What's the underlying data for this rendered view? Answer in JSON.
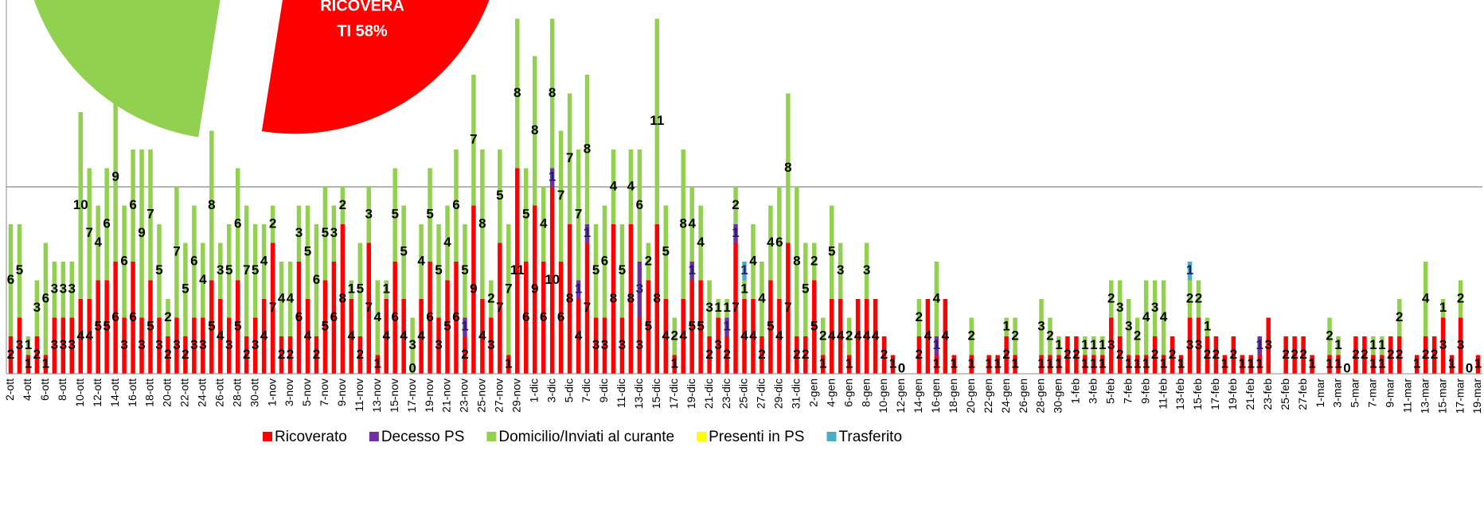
{
  "chart_data": [
    {
      "type": "pie",
      "slices": [
        {
          "label_lines": [
            "RICOVERA",
            "TI 58%"
          ],
          "value": 58,
          "color": "#ff0000"
        },
        {
          "value": 42,
          "color": "#92d050"
        }
      ]
    },
    {
      "type": "stacked_bar",
      "categories": [
        "2-ott",
        null,
        "4-ott",
        null,
        "6-ott",
        null,
        "8-ott",
        null,
        "10-ott",
        null,
        "12-ott",
        null,
        "14-ott",
        null,
        "16-ott",
        null,
        "18-ott",
        null,
        "20-ott",
        null,
        "22-ott",
        null,
        "24-ott",
        null,
        "26-ott",
        null,
        "28-ott",
        null,
        "30-ott",
        null,
        "1-nov",
        null,
        "3-nov",
        null,
        "5-nov",
        null,
        "7-nov",
        null,
        "9-nov",
        null,
        "11-nov",
        null,
        "13-nov",
        null,
        "15-nov",
        null,
        "17-nov",
        null,
        "19-nov",
        null,
        "21-nov",
        null,
        "23-nov",
        null,
        "25-nov",
        null,
        "27-nov",
        null,
        "29-nov",
        null,
        "1-dic",
        null,
        "3-dic",
        null,
        "5-dic",
        null,
        "7-dic",
        null,
        "9-dic",
        null,
        "11-dic",
        null,
        "13-dic",
        null,
        "15-dic",
        null,
        "17-dic",
        null,
        "19-dic",
        null,
        "21-dic",
        null,
        "23-dic",
        null,
        "25-dic",
        null,
        "27-dic",
        null,
        "29-dic",
        null,
        "31-dic",
        null,
        "2-gen",
        null,
        "4-gen",
        null,
        "6-gen",
        null,
        "8-gen",
        null,
        "10-gen",
        null,
        "12-gen",
        null,
        "14-gen",
        null,
        "16-gen",
        null,
        "18-gen",
        null,
        "20-gen",
        null,
        "22-gen",
        null,
        "24-gen",
        null,
        "26-gen",
        null,
        "28-gen",
        null,
        "30-gen",
        null,
        "1-feb",
        null,
        "3-feb",
        null,
        "5-feb",
        null,
        "7-feb",
        null,
        "9-feb",
        null,
        "11-feb",
        null,
        "13-feb",
        null,
        "15-feb",
        null,
        "17-feb",
        null,
        "19-feb",
        null,
        "21-feb",
        null,
        "23-feb",
        null,
        "25-feb",
        null,
        "27-feb",
        null,
        "1-mar",
        null,
        "3-mar",
        null,
        "5-mar",
        null,
        "7-mar",
        null,
        "9-mar",
        null,
        "11-mar",
        null,
        "13-mar",
        null,
        "15-mar",
        null,
        "17-mar",
        null,
        "19-mar"
      ],
      "series": [
        {
          "name": "Ricoverato",
          "color": "#ff0000",
          "values": [
            2,
            3,
            1,
            2,
            1,
            3,
            3,
            3,
            4,
            4,
            5,
            5,
            6,
            3,
            6,
            3,
            5,
            3,
            2,
            3,
            2,
            3,
            3,
            5,
            4,
            3,
            5,
            2,
            3,
            4,
            7,
            2,
            2,
            6,
            4,
            2,
            5,
            6,
            8,
            4,
            2,
            7,
            1,
            4,
            6,
            4,
            0,
            4,
            6,
            3,
            5,
            6,
            2,
            9,
            4,
            3,
            7,
            1,
            11,
            6,
            9,
            6,
            10,
            6,
            8,
            4,
            7,
            3,
            3,
            8,
            3,
            8,
            3,
            5,
            8,
            4,
            1,
            4,
            5,
            5,
            2,
            3,
            2,
            7,
            4,
            4,
            2,
            5,
            4,
            7,
            2,
            2,
            5,
            1,
            4,
            4,
            1,
            4,
            4,
            4,
            2,
            1,
            0,
            null,
            2,
            4,
            1,
            4,
            1,
            null,
            1,
            null,
            1,
            1,
            2,
            1,
            null,
            null,
            1,
            1,
            1,
            2,
            2,
            1,
            1,
            1,
            3,
            2,
            1,
            1,
            1,
            2,
            1,
            2,
            1,
            3,
            3,
            2,
            2,
            1,
            2,
            1,
            1,
            1,
            3,
            null,
            2,
            2,
            2,
            1,
            null,
            1,
            1,
            0,
            2,
            2,
            1,
            1,
            2,
            2,
            null,
            1,
            2,
            2,
            3,
            1,
            3,
            0,
            1
          ]
        },
        {
          "name": "Decesso PS",
          "color": "#7030a0",
          "values": [
            null,
            null,
            null,
            null,
            null,
            null,
            null,
            null,
            null,
            null,
            null,
            null,
            null,
            null,
            null,
            null,
            null,
            null,
            null,
            null,
            null,
            null,
            null,
            null,
            null,
            null,
            null,
            null,
            null,
            null,
            null,
            null,
            null,
            null,
            null,
            null,
            null,
            null,
            null,
            null,
            null,
            null,
            null,
            null,
            null,
            null,
            null,
            null,
            null,
            null,
            null,
            null,
            1,
            null,
            null,
            null,
            null,
            null,
            null,
            null,
            null,
            null,
            1,
            null,
            null,
            1,
            1,
            null,
            null,
            null,
            null,
            null,
            3,
            null,
            null,
            null,
            null,
            null,
            1,
            null,
            null,
            null,
            1,
            1,
            null,
            null,
            null,
            null,
            null,
            null,
            null,
            null,
            null,
            null,
            null,
            null,
            null,
            null,
            null,
            null,
            null,
            null,
            null,
            null,
            null,
            null,
            1,
            null,
            null,
            null,
            null,
            null,
            null,
            null,
            null,
            null,
            null,
            null,
            null,
            null,
            null,
            null,
            null,
            null,
            null,
            null,
            null,
            null,
            null,
            null,
            null,
            null,
            null,
            null,
            null,
            null,
            null,
            null,
            null,
            null,
            null,
            null,
            null,
            1,
            null,
            null,
            null,
            null,
            null,
            null,
            null,
            null,
            null,
            null,
            null,
            null,
            null,
            null,
            null,
            null,
            null,
            null,
            null,
            null,
            null,
            null,
            null,
            null,
            null
          ]
        },
        {
          "name": "Domicilio/Inviati al curante",
          "color": "#92d050",
          "values": [
            6,
            5,
            1,
            3,
            6,
            3,
            3,
            3,
            10,
            7,
            4,
            6,
            9,
            6,
            6,
            9,
            7,
            5,
            2,
            7,
            5,
            6,
            4,
            8,
            3,
            5,
            6,
            7,
            5,
            4,
            2,
            4,
            4,
            3,
            5,
            6,
            5,
            3,
            2,
            1,
            5,
            3,
            4,
            1,
            5,
            5,
            3,
            4,
            5,
            5,
            4,
            6,
            5,
            7,
            8,
            2,
            5,
            7,
            8,
            5,
            8,
            4,
            8,
            7,
            7,
            7,
            8,
            5,
            6,
            4,
            5,
            4,
            6,
            2,
            11,
            5,
            2,
            8,
            4,
            4,
            3,
            1,
            1,
            2,
            1,
            4,
            4,
            4,
            6,
            8,
            8,
            5,
            2,
            2,
            5,
            3,
            2,
            null,
            3,
            null,
            null,
            null,
            null,
            null,
            2,
            null,
            4,
            null,
            null,
            null,
            2,
            null,
            null,
            null,
            1,
            2,
            null,
            null,
            3,
            2,
            1,
            null,
            null,
            1,
            1,
            1,
            2,
            3,
            3,
            2,
            4,
            3,
            4,
            null,
            null,
            2,
            2,
            1,
            null,
            null,
            null,
            null,
            null,
            null,
            null,
            null,
            null,
            null,
            null,
            null,
            null,
            2,
            1,
            null,
            null,
            null,
            1,
            1,
            null,
            2,
            null,
            null,
            4,
            null,
            1,
            null,
            2,
            null,
            null
          ]
        },
        {
          "name": "Presenti in PS",
          "color": "#ffff00",
          "values": [
            null,
            null,
            null,
            null,
            null,
            null,
            null,
            null,
            null,
            null,
            null,
            null,
            null,
            null,
            null,
            null,
            null,
            null,
            null,
            null,
            null,
            null,
            null,
            null,
            null,
            null,
            null,
            null,
            null,
            null,
            null,
            null,
            null,
            null,
            null,
            null,
            null,
            null,
            null,
            null,
            null,
            null,
            null,
            null,
            null,
            null,
            null,
            null,
            null,
            null,
            null,
            null,
            null,
            null,
            null,
            null,
            null,
            null,
            null,
            null,
            null,
            null,
            null,
            null,
            null,
            null,
            null,
            null,
            null,
            null,
            null,
            null,
            null,
            null,
            null,
            null,
            null,
            null,
            null,
            null,
            null,
            null,
            null,
            null,
            null,
            null,
            null,
            null,
            null,
            null,
            null,
            null,
            null,
            null,
            null,
            null,
            null,
            null,
            null,
            null,
            null,
            null,
            null,
            null,
            null,
            null,
            null,
            null,
            null,
            null,
            null,
            null,
            null,
            null,
            null,
            null,
            null,
            null,
            null,
            null,
            null,
            null,
            null,
            null,
            null,
            null,
            null,
            null,
            null,
            null,
            null,
            null,
            null,
            null,
            null,
            null,
            null,
            null,
            null,
            null,
            null,
            null,
            null,
            null,
            null,
            null,
            null,
            null,
            null,
            null,
            null,
            null,
            null,
            null,
            null,
            null,
            null,
            null,
            null,
            null,
            null,
            null,
            null,
            null,
            null,
            null,
            null,
            null,
            null
          ]
        },
        {
          "name": "Trasferito",
          "color": "#4bacc6",
          "values": [
            null,
            null,
            null,
            null,
            null,
            null,
            null,
            null,
            null,
            null,
            null,
            null,
            null,
            null,
            null,
            null,
            null,
            null,
            null,
            null,
            null,
            null,
            null,
            null,
            null,
            null,
            null,
            null,
            null,
            null,
            null,
            null,
            null,
            null,
            null,
            null,
            null,
            null,
            null,
            null,
            null,
            null,
            null,
            null,
            null,
            null,
            null,
            null,
            null,
            null,
            null,
            null,
            null,
            null,
            null,
            null,
            null,
            null,
            null,
            null,
            null,
            null,
            null,
            null,
            null,
            null,
            null,
            null,
            null,
            null,
            null,
            null,
            null,
            null,
            null,
            null,
            null,
            null,
            null,
            null,
            null,
            null,
            null,
            null,
            1,
            null,
            null,
            null,
            null,
            null,
            null,
            null,
            null,
            null,
            null,
            null,
            null,
            null,
            null,
            null,
            null,
            null,
            null,
            null,
            null,
            null,
            null,
            null,
            null,
            null,
            null,
            null,
            null,
            null,
            null,
            null,
            null,
            null,
            null,
            null,
            null,
            null,
            null,
            null,
            null,
            null,
            null,
            null,
            null,
            null,
            null,
            null,
            null,
            null,
            null,
            1,
            null,
            null,
            null,
            null,
            null,
            null,
            null,
            null,
            null,
            null,
            null,
            null,
            null,
            null,
            null,
            null,
            null,
            null,
            null,
            null,
            null,
            null,
            null,
            null,
            null,
            null,
            null,
            null,
            null,
            null,
            null,
            null,
            null
          ]
        }
      ],
      "ylim": [
        0,
        20
      ],
      "yticks": [
        10
      ],
      "tick_labels": false,
      "grid": true,
      "legend": "bottom"
    }
  ]
}
